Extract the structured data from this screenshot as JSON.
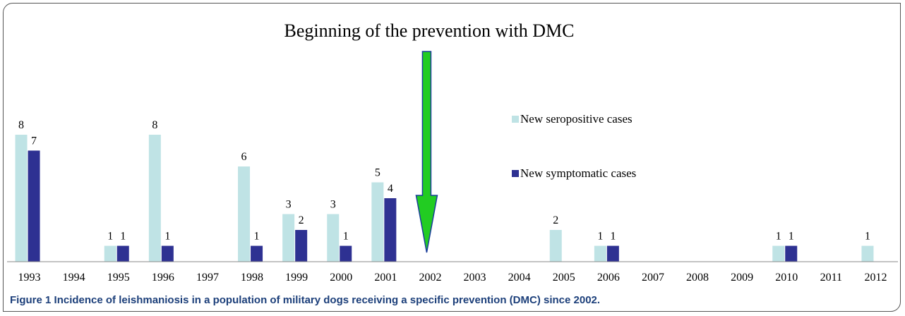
{
  "chart_data": {
    "type": "bar",
    "title": "Beginning of the prevention with DMC",
    "categories": [
      "1993",
      "1994",
      "1995",
      "1996",
      "1997",
      "1998",
      "1999",
      "2000",
      "2001",
      "2002",
      "2003",
      "2004",
      "2005",
      "2006",
      "2007",
      "2008",
      "2009",
      "2010",
      "2011",
      "2012"
    ],
    "series": [
      {
        "name": "New seropositive cases",
        "color": "#bfe3e5",
        "values": [
          8,
          0,
          1,
          8,
          0,
          6,
          3,
          3,
          5,
          0,
          0,
          0,
          2,
          1,
          0,
          0,
          0,
          1,
          0,
          1
        ]
      },
      {
        "name": "New symptomatic cases",
        "color": "#2e3192",
        "values": [
          7,
          0,
          1,
          1,
          0,
          1,
          2,
          1,
          4,
          0,
          0,
          0,
          0,
          1,
          0,
          0,
          0,
          1,
          0,
          0
        ]
      }
    ],
    "ylim": [
      0,
      8
    ],
    "legend_position": "right",
    "annotation": {
      "label": "Beginning of the prevention with DMC",
      "target_category": "2002",
      "arrow_color": "#22cc22"
    }
  },
  "caption": {
    "prefix": "Figure 1",
    "text": "Incidence of leishmaniosis in a population of military dogs receiving a specific prevention (DMC) since 2002."
  }
}
